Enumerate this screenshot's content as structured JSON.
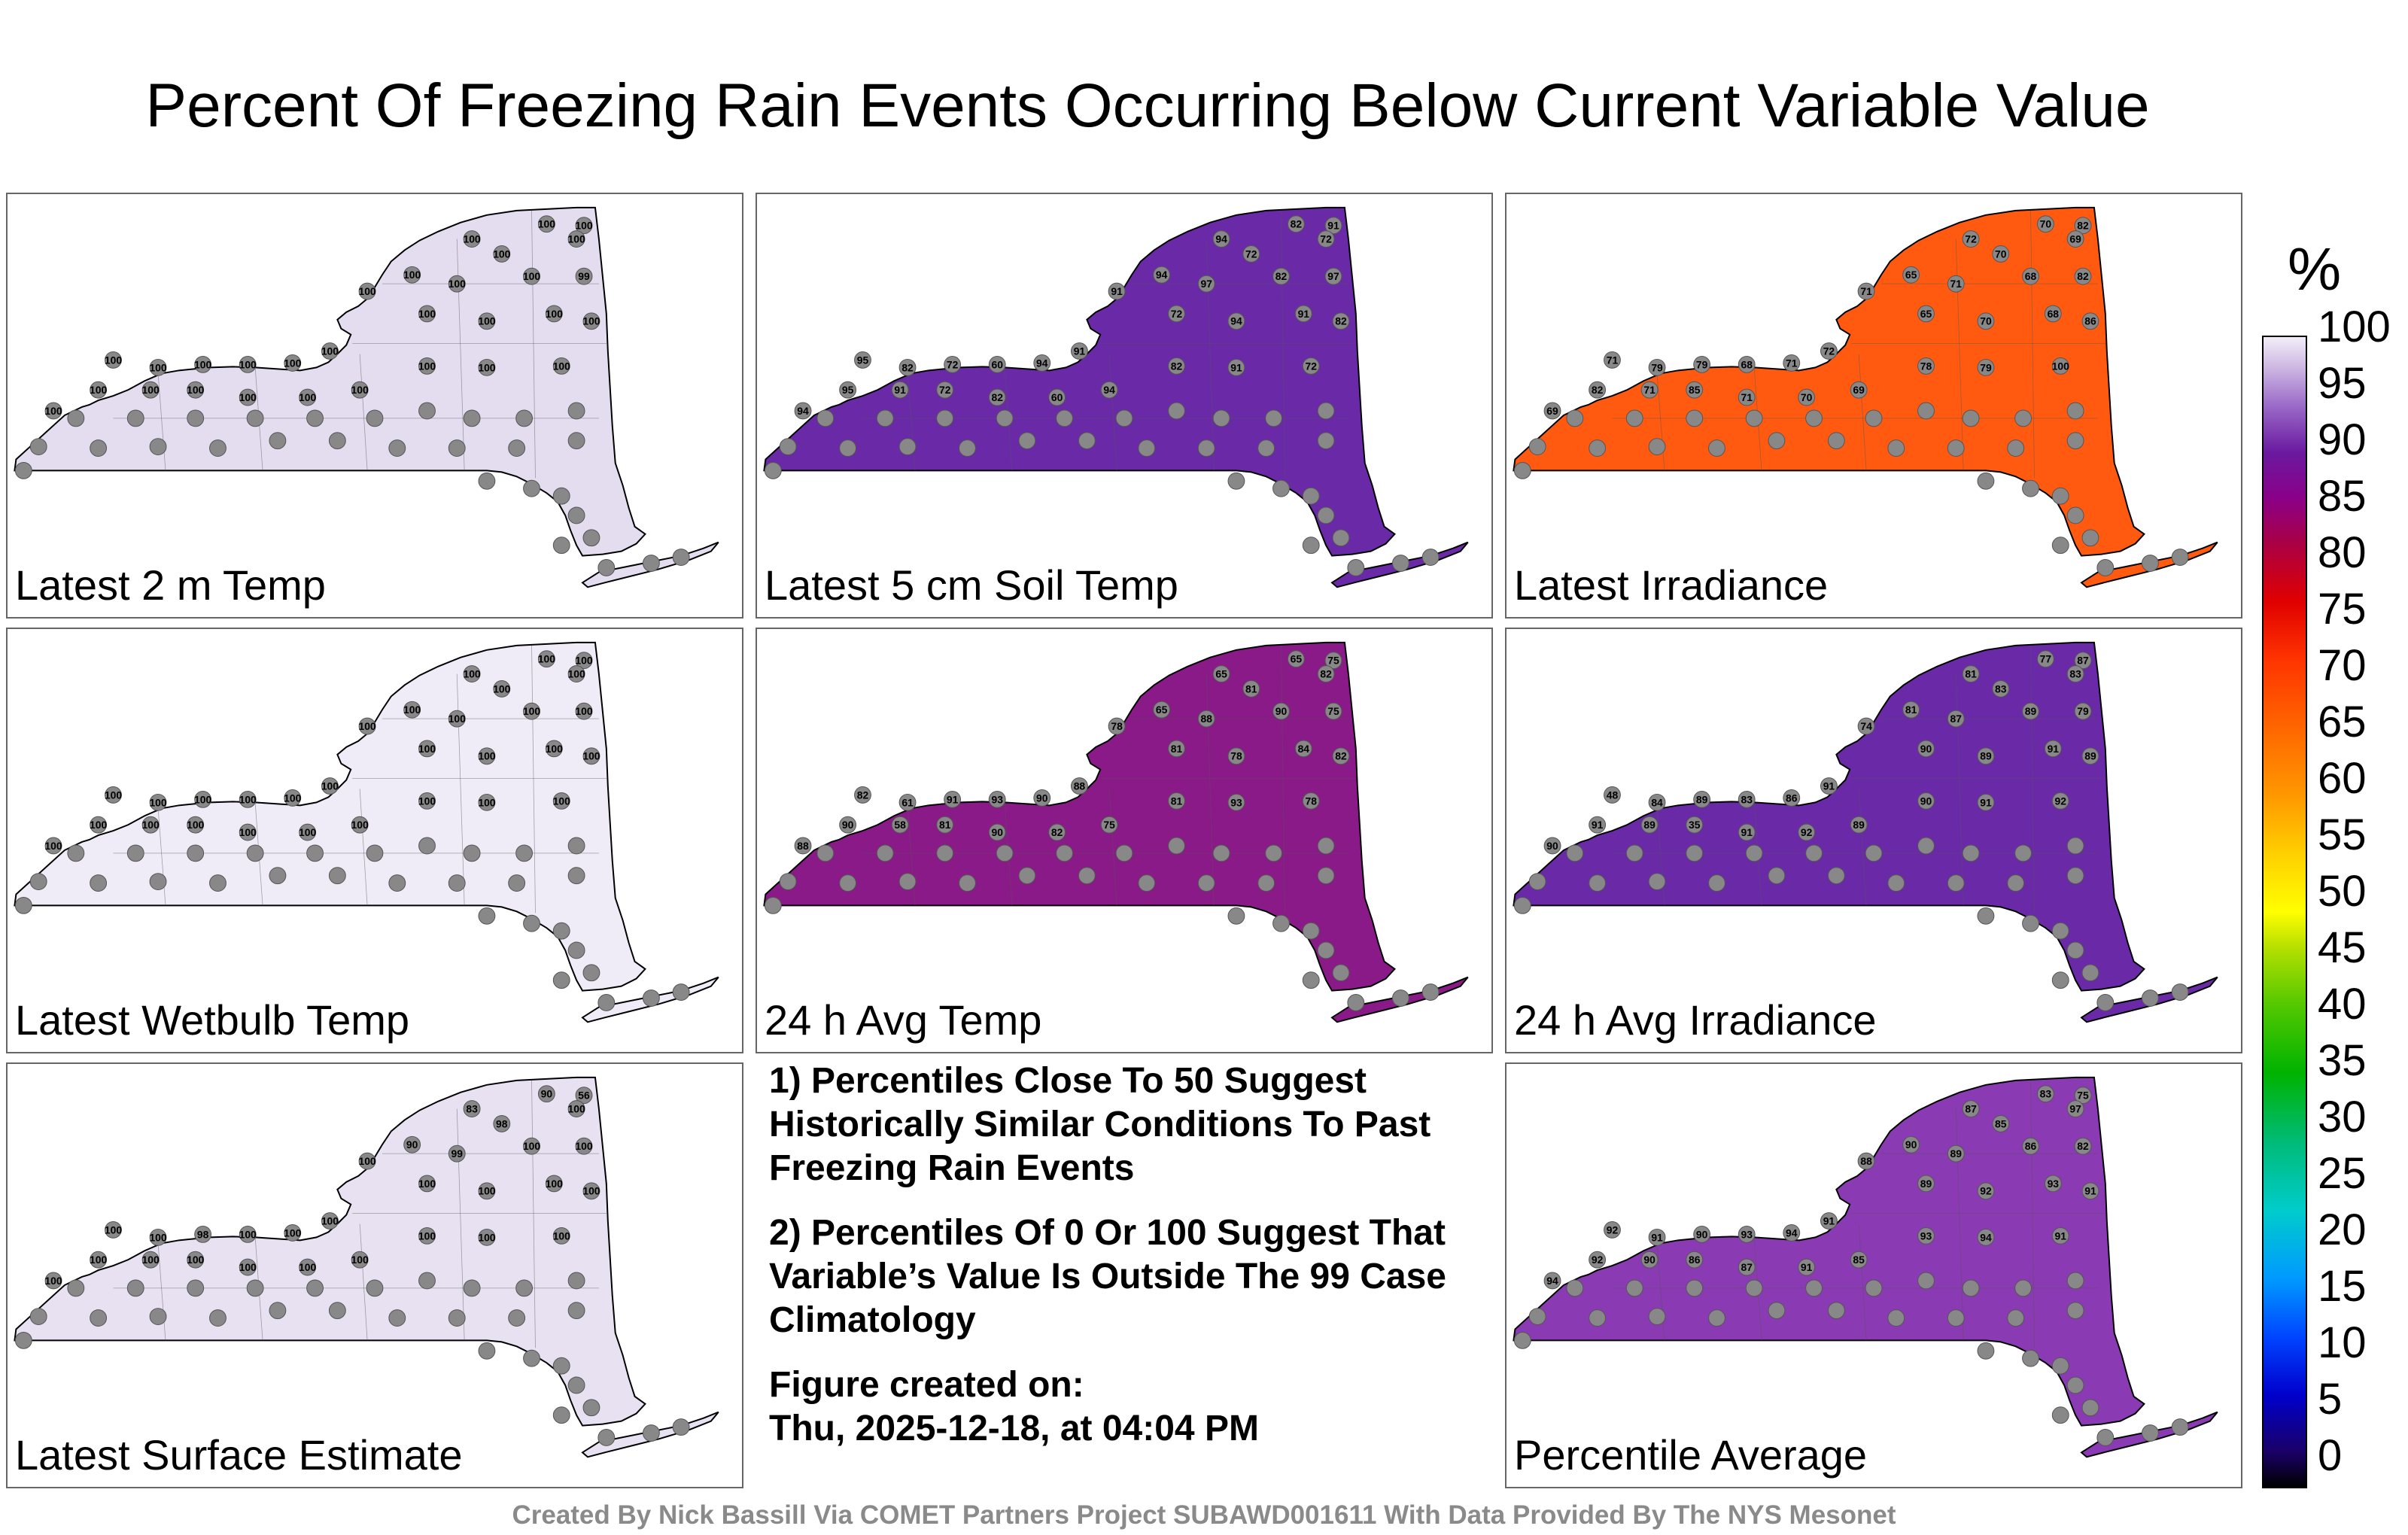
{
  "title": "Percent Of Freezing Rain Events Occurring Below Current Variable Value",
  "panels": [
    {
      "label": "Latest 2 m Temp",
      "fill": "#e4ddf0",
      "values": [
        100,
        100,
        100,
        100,
        100,
        100,
        100,
        100,
        100,
        99,
        100,
        100,
        100,
        100,
        100,
        100,
        100,
        100,
        100,
        100,
        100,
        100,
        100,
        100,
        100,
        100,
        100,
        100,
        100,
        100
      ]
    },
    {
      "label": "Latest 5 cm Soil Temp",
      "fill": "#6a2aa8",
      "values": [
        82,
        91,
        94,
        72,
        72,
        91,
        94,
        97,
        82,
        97,
        95,
        82,
        72,
        60,
        94,
        91,
        72,
        94,
        91,
        82,
        94,
        95,
        91,
        72,
        82,
        60,
        94,
        82,
        91,
        72
      ]
    },
    {
      "label": "Latest Irradiance",
      "fill": "#ff5a10",
      "values": [
        70,
        82,
        72,
        70,
        69,
        71,
        65,
        71,
        68,
        82,
        71,
        79,
        79,
        68,
        71,
        72,
        65,
        70,
        68,
        86,
        69,
        82,
        71,
        85,
        71,
        70,
        69,
        78,
        79,
        100
      ]
    },
    {
      "label": "Latest Wetbulb Temp",
      "fill": "#efebf7",
      "values": [
        100,
        100,
        100,
        100,
        100,
        100,
        100,
        100,
        100,
        100,
        100,
        100,
        100,
        100,
        100,
        100,
        100,
        100,
        100,
        100,
        100,
        100,
        100,
        100,
        100,
        100,
        100,
        100,
        100,
        100
      ]
    },
    {
      "label": "24 h Avg Temp",
      "fill": "#8a1a88",
      "values": [
        65,
        75,
        65,
        81,
        82,
        78,
        65,
        88,
        90,
        75,
        82,
        61,
        91,
        93,
        90,
        88,
        81,
        78,
        84,
        82,
        88,
        90,
        58,
        81,
        90,
        82,
        75,
        81,
        93,
        78
      ]
    },
    {
      "label": "24 h Avg Irradiance",
      "fill": "#6a2aa8",
      "values": [
        77,
        87,
        81,
        83,
        83,
        74,
        81,
        87,
        89,
        79,
        48,
        84,
        89,
        83,
        86,
        91,
        90,
        89,
        91,
        89,
        90,
        91,
        89,
        35,
        91,
        92,
        89,
        90,
        91,
        92
      ]
    },
    {
      "label": "Latest Surface Estimate",
      "fill": "#e8e1f2",
      "values": [
        90,
        56,
        83,
        98,
        100,
        100,
        90,
        99,
        100,
        100,
        100,
        100,
        98,
        100,
        100,
        100,
        100,
        100,
        100,
        100,
        100,
        100,
        100,
        100,
        100,
        100,
        100,
        100,
        100,
        100
      ]
    },
    {
      "label": "Percentile Average",
      "fill": "#8a3ab2",
      "values": [
        83,
        75,
        87,
        85,
        97,
        88,
        90,
        89,
        86,
        82,
        92,
        91,
        90,
        93,
        94,
        91,
        89,
        92,
        93,
        91,
        94,
        92,
        90,
        86,
        87,
        91,
        85,
        93,
        94,
        91
      ]
    }
  ],
  "notes": {
    "note1": "1) Percentiles Close To 50 Suggest Historically Similar Conditions To Past Freezing Rain Events",
    "note2": "2) Percentiles Of 0 Or 100 Suggest That Variable’s Value Is Outside The 99 Case Climatology",
    "figure_label": "Figure created on:",
    "figure_date": "Thu, 2025-12-18, at 04:04 PM"
  },
  "colorbar": {
    "unit": "%",
    "ticks": [
      "100",
      "95",
      "90",
      "85",
      "80",
      "75",
      "70",
      "65",
      "60",
      "55",
      "50",
      "45",
      "40",
      "35",
      "30",
      "25",
      "20",
      "15",
      "10",
      "5",
      "0"
    ]
  },
  "credit": "Created By Nick Bassill Via COMET Partners Project SUBAWD001611 With Data Provided By The NYS Mesonet"
}
